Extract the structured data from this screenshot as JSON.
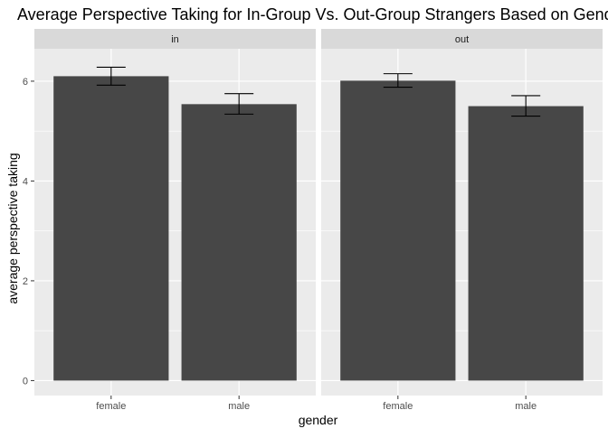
{
  "chart_data": {
    "type": "bar",
    "title": "Average Perspective Taking for In-Group Vs. Out-Group Strangers Based on Gender",
    "xlabel": "gender",
    "ylabel": "average perspective taking",
    "categories": [
      "female",
      "male"
    ],
    "ylim": [
      -0.3,
      6.65
    ],
    "yticks": [
      "0",
      "2",
      "4",
      "6"
    ],
    "grid": true,
    "legend": "none",
    "panels": [
      {
        "name": "in",
        "values": [
          6.1,
          5.54
        ],
        "error_bars": [
          {
            "low": 5.92,
            "high": 6.28
          },
          {
            "low": 5.34,
            "high": 5.75
          }
        ]
      },
      {
        "name": "out",
        "values": [
          6.01,
          5.5
        ],
        "error_bars": [
          {
            "low": 5.88,
            "high": 6.15
          },
          {
            "low": 5.3,
            "high": 5.71
          }
        ]
      }
    ],
    "colors": {
      "bar": "#474747",
      "panel_bg": "#ebebeb",
      "strip_bg": "#d9d9d9",
      "grid": "#ffffff",
      "error_bar": "#000000"
    }
  }
}
